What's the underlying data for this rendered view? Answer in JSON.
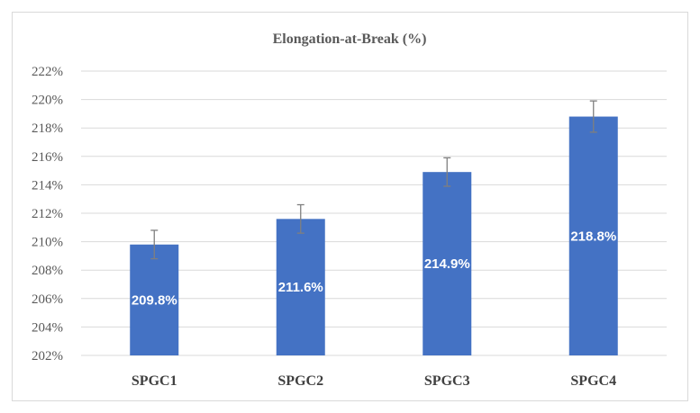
{
  "chart_data": {
    "type": "bar",
    "title": "Elongation-at-Break (%)",
    "xlabel": "",
    "ylabel": "",
    "categories": [
      "SPGC1",
      "SPGC2",
      "SPGC3",
      "SPGC4"
    ],
    "values": [
      209.8,
      211.6,
      214.9,
      218.8
    ],
    "error": [
      1.0,
      1.0,
      1.0,
      1.1
    ],
    "data_labels": [
      "209.8%",
      "211.6%",
      "214.9%",
      "218.8%"
    ],
    "ylim": [
      202,
      222
    ],
    "ytick_step": 2,
    "ytick_labels": [
      "202%",
      "204%",
      "206%",
      "208%",
      "210%",
      "212%",
      "214%",
      "216%",
      "218%",
      "220%",
      "222%"
    ],
    "grid": true,
    "legend": "none",
    "bar_color": "#4472c4",
    "error_color": "#7f7f7f",
    "grid_color": "#d9d9d9"
  }
}
